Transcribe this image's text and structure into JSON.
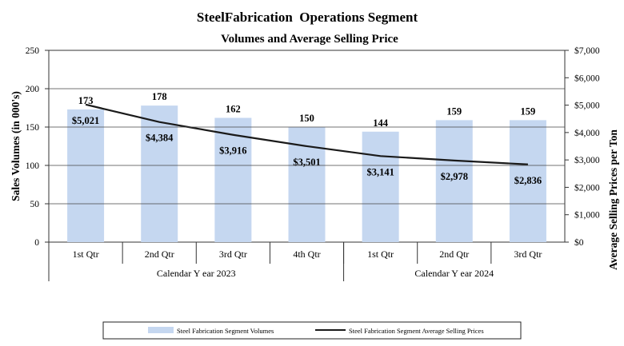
{
  "colors": {
    "bar": "#c5d7f0",
    "line": "#1a1a1a",
    "axis": "#333333",
    "text": "#000000"
  },
  "chart_data": {
    "type": "bar",
    "title": "SteelFabrication  Operations Segment",
    "subtitle": "Volumes and Average Selling Price",
    "ylabel": "Sales Volumes (in 000's)",
    "y2label": "Average Selling Prices per Ton",
    "ylim": [
      0,
      250
    ],
    "y2lim": [
      0,
      7000
    ],
    "yticks": [
      "0",
      "50",
      "100",
      "150",
      "200",
      "250"
    ],
    "y2ticks": [
      "$0",
      "$1,000",
      "$2,000",
      "$3,000",
      "$4,000",
      "$5,000",
      "$6,000",
      "$7,000"
    ],
    "categories": [
      "1st Qtr",
      "2nd Qtr",
      "3rd Qtr",
      "4th Qtr",
      "1st Qtr",
      "2nd Qtr",
      "3rd Qtr"
    ],
    "groups": [
      {
        "label": "Calendar Y ear 2023",
        "count": 4
      },
      {
        "label": "Calendar Y ear 2024",
        "count": 3
      }
    ],
    "series": [
      {
        "name": "Steel Fabrication Segment Volumes",
        "kind": "bar",
        "values": [
          173,
          178,
          162,
          150,
          144,
          159,
          159
        ],
        "labels": [
          "173",
          "178",
          "162",
          "150",
          "144",
          "159",
          "159"
        ]
      },
      {
        "name": "Steel Fabrication Segment Average Selling Prices",
        "kind": "line",
        "axis": "right",
        "values": [
          5021,
          4384,
          3916,
          3501,
          3141,
          2978,
          2836
        ],
        "labels": [
          "$5,021",
          "$4,384",
          "$3,916",
          "$3,501",
          "$3,141",
          "$2,978",
          "$2,836"
        ]
      }
    ],
    "legend_position": "bottom-center"
  }
}
